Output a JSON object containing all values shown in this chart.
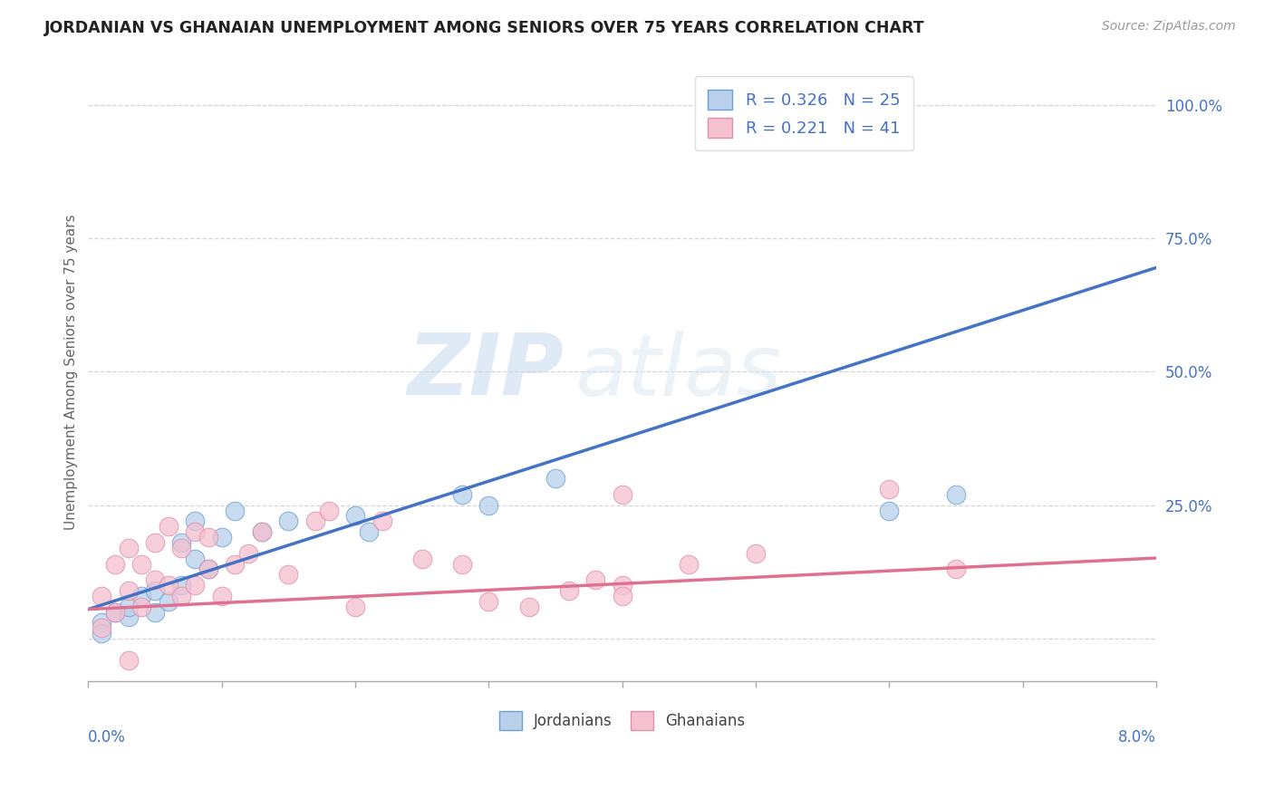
{
  "title": "JORDANIAN VS GHANAIAN UNEMPLOYMENT AMONG SENIORS OVER 75 YEARS CORRELATION CHART",
  "source": "Source: ZipAtlas.com",
  "ylabel": "Unemployment Among Seniors over 75 years",
  "yticks": [
    0.0,
    0.25,
    0.5,
    0.75,
    1.0
  ],
  "ytick_labels": [
    "",
    "25.0%",
    "50.0%",
    "75.0%",
    "100.0%"
  ],
  "xmin": 0.0,
  "xmax": 0.08,
  "ymin": -0.08,
  "ymax": 1.08,
  "watermark_zip": "ZIP",
  "watermark_atlas": "atlas",
  "jordanians": {
    "R": 0.326,
    "N": 25,
    "color": "#b8d0ea",
    "edge_color": "#6a9fd8",
    "line_color": "#4472c4",
    "x": [
      0.001,
      0.002,
      0.003,
      0.003,
      0.004,
      0.005,
      0.005,
      0.006,
      0.007,
      0.007,
      0.008,
      0.008,
      0.009,
      0.01,
      0.011,
      0.013,
      0.015,
      0.02,
      0.021,
      0.028,
      0.03,
      0.035,
      0.06,
      0.065,
      0.001
    ],
    "y": [
      0.03,
      0.05,
      0.04,
      0.06,
      0.08,
      0.05,
      0.09,
      0.07,
      0.1,
      0.18,
      0.15,
      0.22,
      0.13,
      0.19,
      0.24,
      0.2,
      0.22,
      0.23,
      0.2,
      0.27,
      0.25,
      0.3,
      0.24,
      0.27,
      0.01
    ],
    "slope": 8.0,
    "intercept": 0.055
  },
  "ghanaians": {
    "R": 0.221,
    "N": 41,
    "color": "#f5c0d0",
    "edge_color": "#e090a8",
    "line_color": "#e07090",
    "x": [
      0.001,
      0.001,
      0.002,
      0.002,
      0.003,
      0.003,
      0.004,
      0.004,
      0.005,
      0.005,
      0.006,
      0.006,
      0.007,
      0.007,
      0.008,
      0.008,
      0.009,
      0.009,
      0.01,
      0.011,
      0.012,
      0.013,
      0.015,
      0.017,
      0.018,
      0.02,
      0.022,
      0.025,
      0.028,
      0.03,
      0.033,
      0.036,
      0.038,
      0.04,
      0.04,
      0.045,
      0.05,
      0.06,
      0.065,
      0.04,
      0.003
    ],
    "y": [
      0.02,
      0.08,
      0.05,
      0.14,
      0.09,
      0.17,
      0.06,
      0.14,
      0.11,
      0.18,
      0.1,
      0.21,
      0.08,
      0.17,
      0.1,
      0.2,
      0.13,
      0.19,
      0.08,
      0.14,
      0.16,
      0.2,
      0.12,
      0.22,
      0.24,
      0.06,
      0.22,
      0.15,
      0.14,
      0.07,
      0.06,
      0.09,
      0.11,
      0.1,
      0.27,
      0.14,
      0.16,
      0.28,
      0.13,
      0.08,
      -0.04
    ],
    "slope": 1.2,
    "intercept": 0.055
  }
}
